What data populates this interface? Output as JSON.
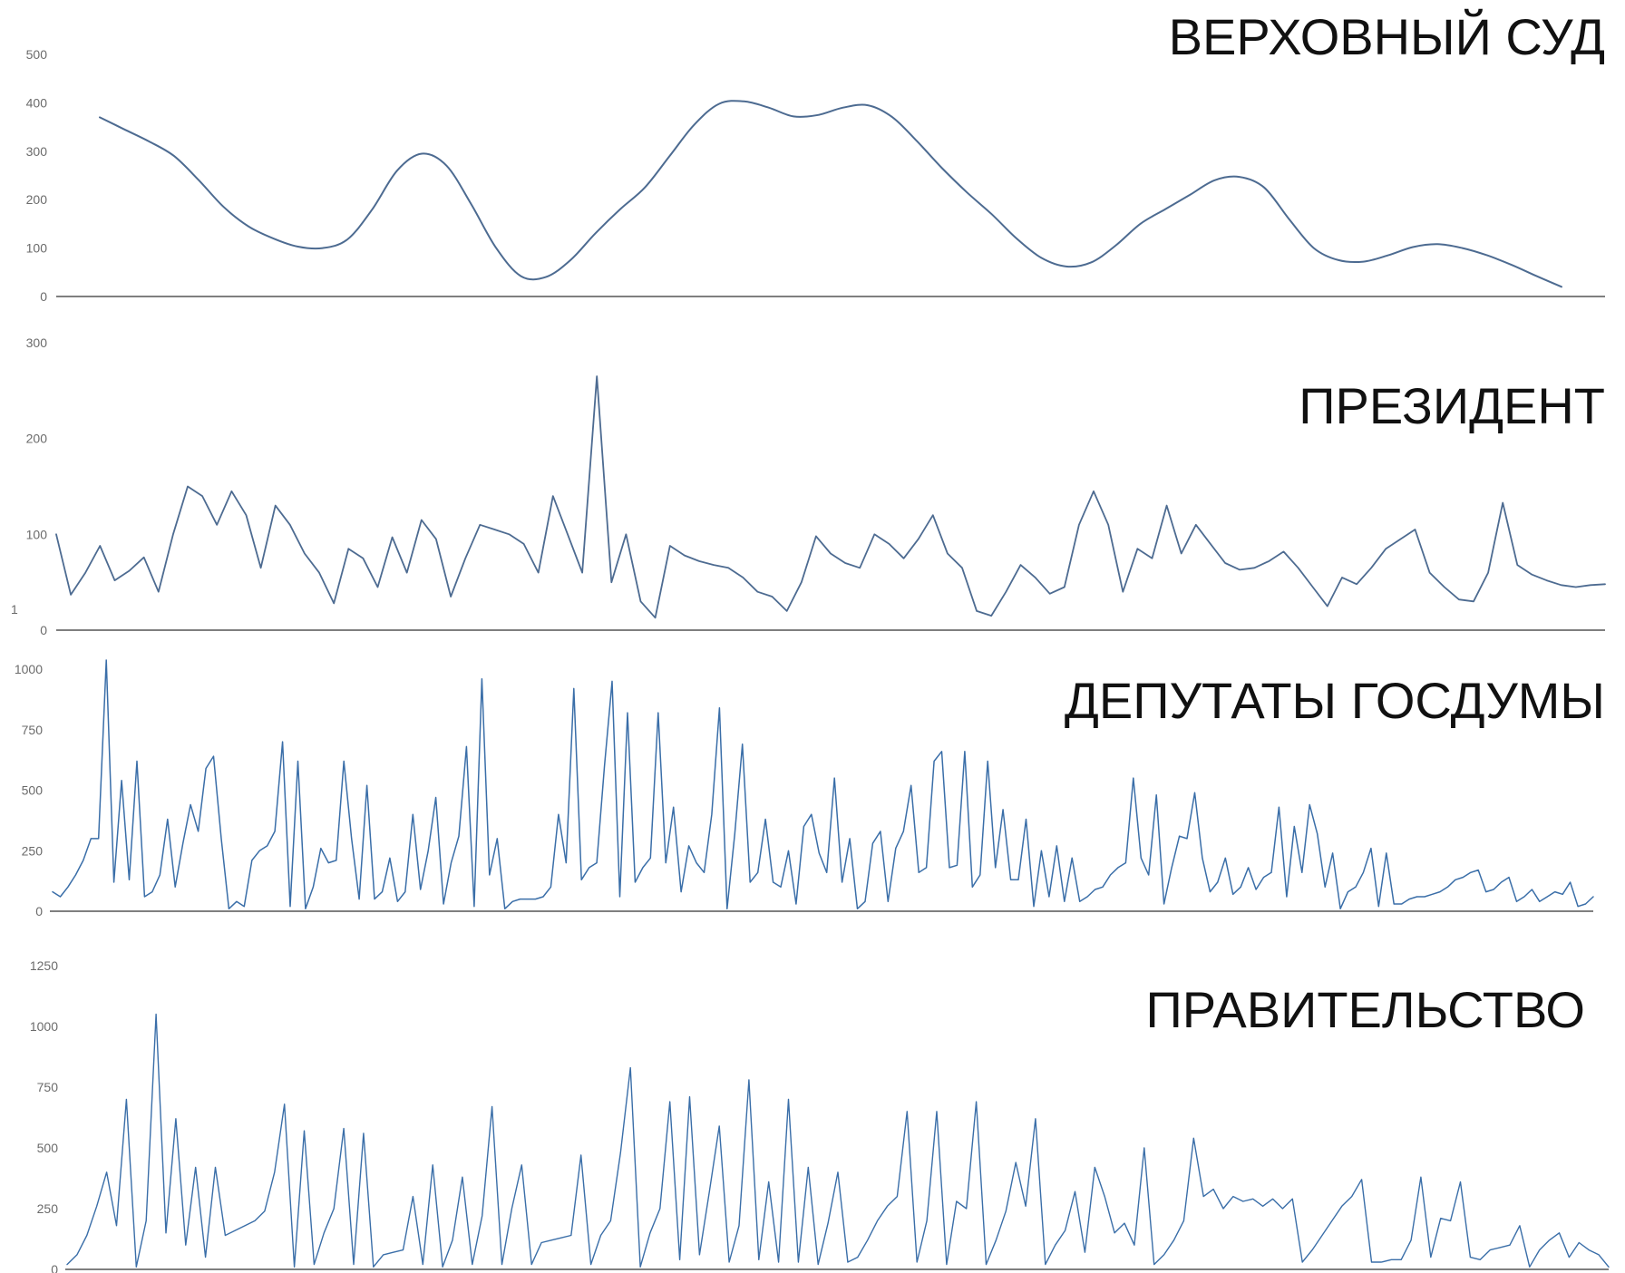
{
  "colors": {
    "line": "#4d6b91",
    "dense_line": "#3a6ea8",
    "axis": "#555555",
    "tick": "#6b6b6b",
    "title": "#111111"
  },
  "chart_data": [
    {
      "type": "line",
      "title": "ВЕРХОВНЫЙ СУД",
      "xlabel": "",
      "ylabel": "",
      "ylim": [
        0,
        500
      ],
      "yticks": [
        "0",
        "100",
        "200",
        "300",
        "400",
        "500"
      ],
      "y_tick_values": [
        0,
        100,
        200,
        300,
        400,
        500
      ],
      "grid": false,
      "series": [
        {
          "values": [
            370,
            345,
            320,
            290,
            240,
            185,
            145,
            120,
            103,
            100,
            118,
            180,
            260,
            295,
            270,
            190,
            100,
            42,
            40,
            75,
            130,
            180,
            225,
            290,
            355,
            398,
            403,
            390,
            372,
            375,
            390,
            395,
            370,
            320,
            265,
            215,
            170,
            120,
            80,
            62,
            70,
            105,
            150,
            180,
            210,
            240,
            247,
            225,
            160,
            100,
            75,
            72,
            85,
            102,
            108,
            100,
            85,
            65,
            42,
            20
          ]
        }
      ]
    },
    {
      "type": "line",
      "title": "ПРЕЗИДЕНТ",
      "xlabel": "",
      "ylabel": "",
      "ylim": [
        0,
        300
      ],
      "yticks": [
        "0",
        "100",
        "200",
        "300"
      ],
      "y_tick_values": [
        0,
        100,
        200,
        300
      ],
      "extra_label": "1",
      "grid": false,
      "series": [
        {
          "values": [
            100,
            37,
            60,
            88,
            52,
            62,
            76,
            40,
            100,
            150,
            140,
            110,
            145,
            120,
            65,
            130,
            110,
            80,
            60,
            28,
            85,
            75,
            45,
            97,
            60,
            115,
            95,
            35,
            75,
            110,
            105,
            100,
            90,
            60,
            140,
            100,
            60,
            265,
            50,
            100,
            30,
            13,
            88,
            78,
            72,
            68,
            65,
            55,
            40,
            35,
            20,
            50,
            98,
            80,
            70,
            65,
            100,
            90,
            75,
            95,
            120,
            80,
            65,
            20,
            15,
            40,
            68,
            55,
            38,
            45,
            110,
            145,
            110,
            40,
            85,
            75,
            130,
            80,
            110,
            90,
            70,
            63,
            65,
            72,
            82,
            65,
            45,
            25,
            55,
            48,
            65,
            85,
            95,
            105,
            60,
            45,
            32,
            30,
            60,
            133,
            68,
            58,
            52,
            47,
            45,
            47,
            48
          ]
        }
      ]
    },
    {
      "type": "line",
      "title": "ДЕПУТАТЫ ГОСДУМЫ",
      "xlabel": "",
      "ylabel": "",
      "ylim": [
        0,
        1000
      ],
      "yticks": [
        "0",
        "250",
        "500",
        "750",
        "1000"
      ],
      "y_tick_values": [
        0,
        250,
        500,
        750,
        1000
      ],
      "grid": false,
      "series": [
        {
          "values": [
            80,
            60,
            100,
            150,
            210,
            300,
            300,
            1050,
            120,
            540,
            130,
            620,
            60,
            80,
            150,
            380,
            100,
            280,
            440,
            330,
            590,
            640,
            300,
            10,
            40,
            20,
            210,
            250,
            270,
            330,
            700,
            20,
            620,
            10,
            100,
            260,
            200,
            210,
            620,
            300,
            50,
            520,
            50,
            80,
            220,
            40,
            80,
            400,
            90,
            250,
            470,
            30,
            200,
            310,
            680,
            20,
            960,
            150,
            300,
            10,
            40,
            50,
            50,
            50,
            60,
            100,
            400,
            200,
            920,
            130,
            180,
            200,
            600,
            950,
            60,
            820,
            120,
            180,
            220,
            820,
            200,
            430,
            80,
            270,
            200,
            160,
            400,
            840,
            10,
            320,
            690,
            120,
            160,
            380,
            120,
            100,
            250,
            30,
            350,
            400,
            240,
            160,
            550,
            120,
            300,
            10,
            40,
            280,
            330,
            40,
            260,
            330,
            520,
            160,
            180,
            620,
            660,
            180,
            190,
            660,
            100,
            150,
            620,
            180,
            420,
            130,
            130,
            380,
            20,
            250,
            60,
            270,
            40,
            220,
            40,
            60,
            90,
            100,
            150,
            180,
            200,
            550,
            220,
            150,
            480,
            30,
            180,
            310,
            300,
            490,
            220,
            80,
            120,
            220,
            70,
            100,
            180,
            90,
            140,
            160,
            430,
            60,
            350,
            160,
            440,
            320,
            100,
            240,
            10,
            80,
            100,
            160,
            260,
            20,
            240,
            30,
            30,
            50,
            60,
            60,
            70,
            80,
            100,
            130,
            140,
            160,
            170,
            80,
            90,
            120,
            140,
            40,
            60,
            90,
            40,
            60,
            80,
            70,
            120,
            20,
            30,
            60
          ]
        }
      ]
    },
    {
      "type": "line",
      "title": "ПРАВИТЕЛЬСТВО",
      "xlabel": "",
      "ylabel": "",
      "ylim": [
        0,
        1250
      ],
      "yticks": [
        "0",
        "250",
        "500",
        "750",
        "1000",
        "1250"
      ],
      "y_tick_values": [
        0,
        250,
        500,
        750,
        1000,
        1250
      ],
      "grid": false,
      "series": [
        {
          "values": [
            20,
            60,
            140,
            260,
            400,
            180,
            700,
            10,
            200,
            1050,
            150,
            620,
            100,
            420,
            50,
            420,
            140,
            160,
            180,
            200,
            240,
            400,
            680,
            10,
            570,
            20,
            150,
            250,
            580,
            20,
            560,
            10,
            60,
            70,
            80,
            300,
            20,
            430,
            10,
            120,
            380,
            20,
            220,
            670,
            20,
            250,
            430,
            20,
            110,
            120,
            130,
            140,
            470,
            20,
            140,
            200,
            480,
            830,
            10,
            150,
            250,
            690,
            40,
            710,
            60,
            320,
            590,
            30,
            180,
            780,
            40,
            360,
            30,
            700,
            30,
            420,
            20,
            190,
            400,
            30,
            50,
            120,
            200,
            260,
            300,
            650,
            30,
            200,
            650,
            20,
            280,
            250,
            690,
            20,
            120,
            240,
            440,
            260,
            620,
            20,
            100,
            160,
            320,
            70,
            420,
            300,
            150,
            190,
            100,
            500,
            20,
            60,
            120,
            200,
            540,
            300,
            330,
            250,
            300,
            280,
            290,
            260,
            290,
            250,
            290,
            30,
            80,
            140,
            200,
            260,
            300,
            370,
            30,
            30,
            40,
            40,
            120,
            380,
            50,
            210,
            200,
            360,
            50,
            40,
            80,
            90,
            100,
            180,
            10,
            80,
            120,
            150,
            50,
            110,
            80,
            60,
            10
          ]
        }
      ]
    }
  ]
}
